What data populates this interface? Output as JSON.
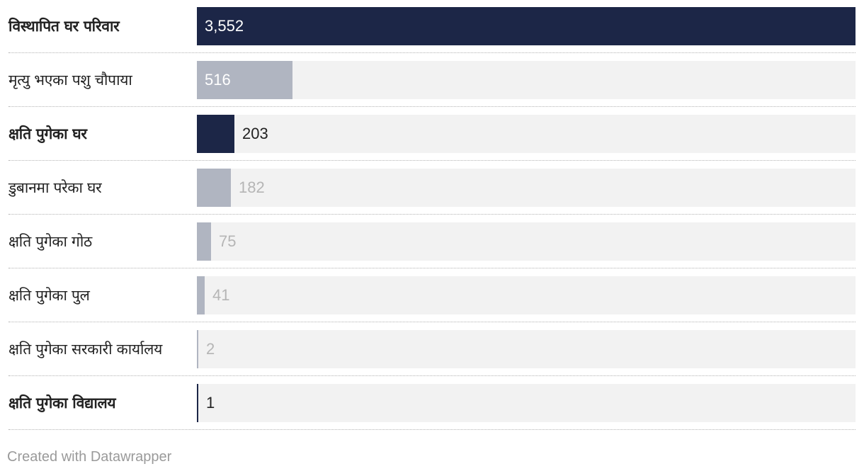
{
  "chart_data": {
    "type": "bar",
    "orientation": "horizontal",
    "categories": [
      "विस्थापित घर परिवार",
      "मृत्यु भएका पशु चौपाया",
      "क्षति पुगेका घर",
      "डुबानमा परेका घर",
      "क्षति पुगेका गोठ",
      "क्षति पुगेका पुल",
      "क्षति पुगेका सरकारी कार्यालय",
      "क्षति पुगेका विद्यालय"
    ],
    "values": [
      3552,
      516,
      203,
      182,
      75,
      41,
      2,
      1
    ],
    "value_labels": [
      "3,552",
      "516",
      "203",
      "182",
      "75",
      "41",
      "2",
      "1"
    ],
    "highlighted": [
      true,
      false,
      true,
      false,
      false,
      false,
      false,
      true
    ],
    "xlim": [
      0,
      3552
    ],
    "grid": false,
    "legend": "none"
  },
  "colors": {
    "highlight_bar": "#1c2647",
    "muted_bar": "#b0b5c1",
    "track": "#f2f2f2",
    "highlight_label_inside": "#ffffff",
    "highlight_label_outside": "#222222",
    "muted_label_inside": "#ffffff",
    "muted_label_outside": "#b5b5b5"
  },
  "footer": {
    "credit": "Created with Datawrapper"
  }
}
